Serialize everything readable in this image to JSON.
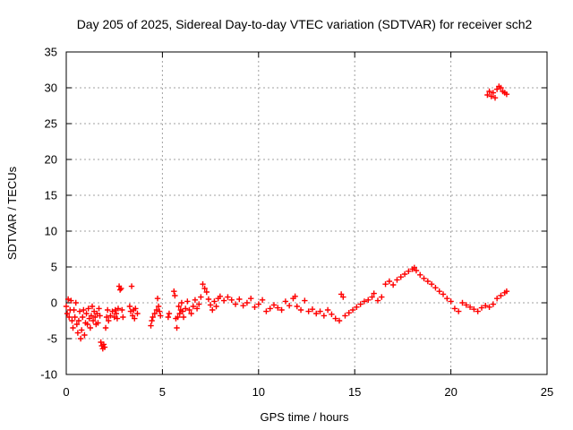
{
  "chart_data": {
    "type": "scatter",
    "title": "Day 205 of 2025, Sidereal Day-to-day VTEC variation (SDTVAR) for receiver sch2",
    "xlabel": "GPS time / hours",
    "ylabel": "SDTVAR / TECUs",
    "xlim": [
      0,
      25
    ],
    "ylim": [
      -10,
      35
    ],
    "x_ticks": [
      0,
      5,
      10,
      15,
      20,
      25
    ],
    "y_ticks": [
      -10,
      -5,
      0,
      5,
      10,
      15,
      20,
      25,
      30,
      35
    ],
    "x_tick_labels": [
      "0",
      "5",
      "10",
      "15",
      "20",
      "25"
    ],
    "y_tick_labels": [
      "-10",
      "-5",
      "0",
      "5",
      "10",
      "15",
      "20",
      "25",
      "30",
      "35"
    ],
    "grid": true,
    "marker": "+",
    "color": "#ff0000",
    "series": [
      {
        "name": "SDTVAR",
        "points": [
          [
            0.0,
            -0.5
          ],
          [
            0.05,
            -1.5
          ],
          [
            0.1,
            0.5
          ],
          [
            0.15,
            -2.0
          ],
          [
            0.2,
            -1.0
          ],
          [
            0.25,
            0.3
          ],
          [
            0.3,
            -2.5
          ],
          [
            0.35,
            -3.5
          ],
          [
            0.4,
            -1.0
          ],
          [
            0.45,
            -2.0
          ],
          [
            0.5,
            0.0
          ],
          [
            0.55,
            -3.0
          ],
          [
            0.6,
            -4.2
          ],
          [
            0.65,
            -2.5
          ],
          [
            0.7,
            -1.2
          ],
          [
            0.75,
            -5.0
          ],
          [
            0.8,
            -3.8
          ],
          [
            0.85,
            -2.0
          ],
          [
            0.9,
            -1.0
          ],
          [
            0.95,
            -4.5
          ],
          [
            1.0,
            -2.8
          ],
          [
            1.05,
            -1.5
          ],
          [
            1.1,
            -3.0
          ],
          [
            1.15,
            -0.8
          ],
          [
            1.2,
            -2.2
          ],
          [
            1.25,
            -3.5
          ],
          [
            1.3,
            -1.8
          ],
          [
            1.35,
            -0.5
          ],
          [
            1.4,
            -2.5
          ],
          [
            1.45,
            -1.2
          ],
          [
            1.5,
            -2.0
          ],
          [
            1.55,
            -3.0
          ],
          [
            1.6,
            -1.5
          ],
          [
            1.65,
            -2.8
          ],
          [
            1.7,
            -0.8
          ],
          [
            1.75,
            -1.8
          ],
          [
            1.8,
            -5.5
          ],
          [
            1.85,
            -6.0
          ],
          [
            1.9,
            -6.4
          ],
          [
            1.95,
            -5.8
          ],
          [
            2.0,
            -6.2
          ],
          [
            2.05,
            -3.5
          ],
          [
            2.1,
            -2.0
          ],
          [
            2.15,
            -1.0
          ],
          [
            2.2,
            -2.5
          ],
          [
            2.3,
            -1.8
          ],
          [
            2.4,
            -1.2
          ],
          [
            2.5,
            -2.0
          ],
          [
            2.55,
            -1.0
          ],
          [
            2.6,
            -1.5
          ],
          [
            2.65,
            -2.2
          ],
          [
            2.7,
            -0.8
          ],
          [
            2.75,
            2.3
          ],
          [
            2.8,
            1.8
          ],
          [
            2.85,
            2.0
          ],
          [
            2.9,
            -1.0
          ],
          [
            2.95,
            -2.0
          ],
          [
            3.3,
            -0.5
          ],
          [
            3.35,
            -1.2
          ],
          [
            3.4,
            2.3
          ],
          [
            3.45,
            -1.8
          ],
          [
            3.5,
            -1.0
          ],
          [
            3.55,
            -2.2
          ],
          [
            3.6,
            -0.8
          ],
          [
            3.7,
            -1.5
          ],
          [
            4.4,
            -3.2
          ],
          [
            4.45,
            -2.5
          ],
          [
            4.5,
            -2.0
          ],
          [
            4.6,
            -1.5
          ],
          [
            4.7,
            -1.0
          ],
          [
            4.75,
            0.6
          ],
          [
            4.8,
            -0.5
          ],
          [
            4.85,
            -1.2
          ],
          [
            4.9,
            -1.8
          ],
          [
            5.3,
            -2.0
          ],
          [
            5.35,
            -1.5
          ],
          [
            5.6,
            1.6
          ],
          [
            5.65,
            1.0
          ],
          [
            5.7,
            -2.2
          ],
          [
            5.75,
            -3.5
          ],
          [
            5.8,
            -2.0
          ],
          [
            5.85,
            -0.5
          ],
          [
            5.9,
            -1.5
          ],
          [
            5.95,
            -1.0
          ],
          [
            6.0,
            0.0
          ],
          [
            6.05,
            -1.2
          ],
          [
            6.1,
            -2.0
          ],
          [
            6.2,
            -0.8
          ],
          [
            6.3,
            0.2
          ],
          [
            6.4,
            -1.0
          ],
          [
            6.5,
            -1.5
          ],
          [
            6.6,
            -0.5
          ],
          [
            6.7,
            0.4
          ],
          [
            6.8,
            -0.8
          ],
          [
            6.9,
            -0.2
          ],
          [
            7.0,
            0.8
          ],
          [
            7.1,
            2.6
          ],
          [
            7.2,
            2.0
          ],
          [
            7.3,
            1.5
          ],
          [
            7.4,
            0.5
          ],
          [
            7.5,
            -0.3
          ],
          [
            7.6,
            -1.0
          ],
          [
            7.7,
            0.2
          ],
          [
            7.8,
            -0.5
          ],
          [
            7.9,
            0.6
          ],
          [
            8.0,
            0.9
          ],
          [
            8.2,
            0.3
          ],
          [
            8.4,
            0.8
          ],
          [
            8.6,
            0.4
          ],
          [
            8.8,
            -0.2
          ],
          [
            9.0,
            0.5
          ],
          [
            9.2,
            -0.4
          ],
          [
            9.4,
            0.0
          ],
          [
            9.6,
            0.6
          ],
          [
            9.8,
            -0.6
          ],
          [
            10.0,
            -0.2
          ],
          [
            10.2,
            0.4
          ],
          [
            10.4,
            -1.2
          ],
          [
            10.6,
            -0.8
          ],
          [
            10.8,
            -0.3
          ],
          [
            11.0,
            -0.7
          ],
          [
            11.2,
            -1.0
          ],
          [
            11.4,
            0.2
          ],
          [
            11.6,
            -0.4
          ],
          [
            11.8,
            0.6
          ],
          [
            11.9,
            0.9
          ],
          [
            12.0,
            -0.5
          ],
          [
            12.2,
            -1.0
          ],
          [
            12.4,
            0.3
          ],
          [
            12.6,
            -1.2
          ],
          [
            12.8,
            -0.9
          ],
          [
            13.0,
            -1.5
          ],
          [
            13.2,
            -1.2
          ],
          [
            13.4,
            -1.8
          ],
          [
            13.6,
            -1.0
          ],
          [
            13.8,
            -1.6
          ],
          [
            14.0,
            -2.2
          ],
          [
            14.2,
            -2.5
          ],
          [
            14.3,
            1.2
          ],
          [
            14.4,
            0.8
          ],
          [
            14.5,
            -1.8
          ],
          [
            14.7,
            -1.4
          ],
          [
            14.9,
            -1.0
          ],
          [
            15.1,
            -0.6
          ],
          [
            15.3,
            -0.2
          ],
          [
            15.5,
            0.2
          ],
          [
            15.7,
            0.4
          ],
          [
            15.9,
            0.8
          ],
          [
            16.0,
            1.3
          ],
          [
            16.2,
            0.3
          ],
          [
            16.4,
            0.8
          ],
          [
            16.6,
            2.6
          ],
          [
            16.8,
            3.0
          ],
          [
            17.0,
            2.5
          ],
          [
            17.2,
            3.2
          ],
          [
            17.4,
            3.6
          ],
          [
            17.6,
            4.0
          ],
          [
            17.8,
            4.4
          ],
          [
            18.0,
            4.7
          ],
          [
            18.1,
            4.9
          ],
          [
            18.2,
            4.5
          ],
          [
            18.4,
            3.9
          ],
          [
            18.6,
            3.4
          ],
          [
            18.8,
            3.0
          ],
          [
            19.0,
            2.6
          ],
          [
            19.2,
            2.1
          ],
          [
            19.4,
            1.6
          ],
          [
            19.6,
            1.2
          ],
          [
            19.8,
            0.6
          ],
          [
            20.0,
            0.2
          ],
          [
            20.2,
            -0.8
          ],
          [
            20.4,
            -1.2
          ],
          [
            20.6,
            0.0
          ],
          [
            20.8,
            -0.3
          ],
          [
            21.0,
            -0.6
          ],
          [
            21.2,
            -0.9
          ],
          [
            21.4,
            -1.2
          ],
          [
            21.6,
            -0.7
          ],
          [
            21.8,
            -0.4
          ],
          [
            22.0,
            -0.6
          ],
          [
            22.2,
            -0.2
          ],
          [
            22.4,
            0.6
          ],
          [
            22.6,
            1.0
          ],
          [
            22.8,
            1.4
          ],
          [
            22.9,
            1.6
          ],
          [
            21.9,
            29.0
          ],
          [
            22.0,
            29.5
          ],
          [
            22.1,
            28.8
          ],
          [
            22.2,
            29.3
          ],
          [
            22.3,
            28.6
          ],
          [
            22.4,
            29.8
          ],
          [
            22.5,
            30.2
          ],
          [
            22.6,
            30.0
          ],
          [
            22.7,
            29.5
          ],
          [
            22.8,
            29.3
          ],
          [
            22.9,
            29.1
          ]
        ]
      }
    ]
  }
}
